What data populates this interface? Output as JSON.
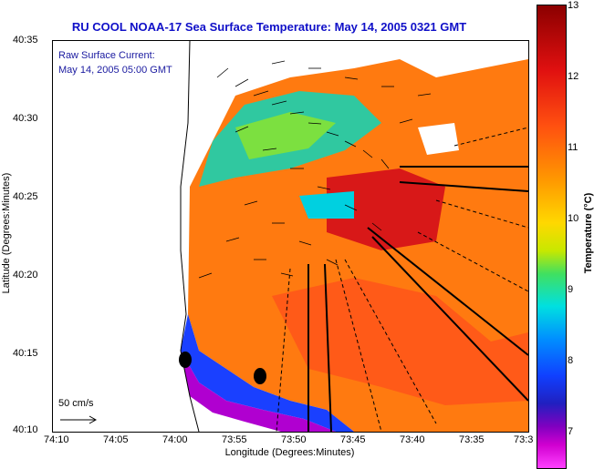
{
  "title": "RU COOL   NOAA-17  Sea Surface Temperature:  May 14, 2005 0321 GMT",
  "overlay": {
    "line1": "Raw Surface Current:",
    "line2": "May 14, 2005 05:00 GMT",
    "scale": "50 cm/s"
  },
  "axes": {
    "xlabel": "Longitude (Degrees:Minutes)",
    "ylabel": "Latitude (Degrees:Minutes)",
    "xticks": [
      "74:10",
      "74:05",
      "74:00",
      "73:55",
      "73:50",
      "73:45",
      "73:40",
      "73:35",
      "73:3"
    ],
    "yticks": [
      "40:35",
      "40:30",
      "40:25",
      "40:20",
      "40:15",
      "40:10"
    ]
  },
  "colorbar": {
    "label": "Temperature (°C)",
    "ticks": [
      "13",
      "12",
      "11",
      "10",
      "9",
      "8",
      "7"
    ],
    "range": [
      6.6,
      13
    ]
  },
  "colors": {
    "title": "#1010c8",
    "overlay_text": "#1a1aa0"
  }
}
